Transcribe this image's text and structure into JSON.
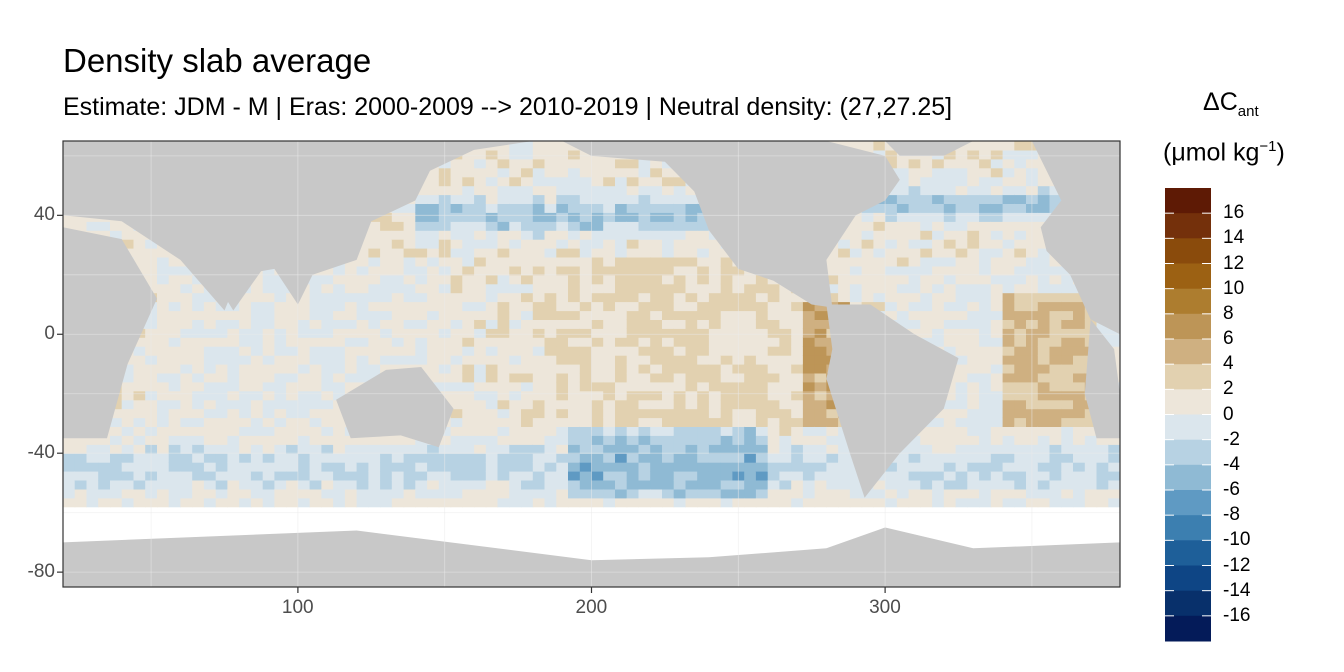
{
  "chart_data": {
    "type": "heatmap",
    "title": "Density slab average",
    "subtitle": "Estimate: JDM - M | Eras: 2000-2009 --> 2010-2019 | Neutral density: (27,27.25]",
    "xlabel": "",
    "ylabel": "",
    "xlim": [
      20,
      380
    ],
    "ylim": [
      -85,
      65
    ],
    "x_ticks": [
      "100",
      "200",
      "300"
    ],
    "x_tick_values": [
      100,
      200,
      300
    ],
    "y_ticks": [
      "40",
      "0",
      "-40",
      "-80"
    ],
    "y_tick_values": [
      40,
      0,
      -40,
      -80
    ],
    "grid": true,
    "legend": {
      "title_main": "ΔC",
      "title_sub": "ant",
      "unit_prefix": "(μmol kg",
      "unit_sup": "−1",
      "unit_suffix": ")",
      "placement": "right",
      "labels": [
        "16",
        "14",
        "12",
        "10",
        "8",
        "6",
        "4",
        "2",
        "0",
        "-2",
        "-4",
        "-6",
        "-8",
        "-10",
        "-12",
        "-14",
        "-16"
      ],
      "colors": [
        "#5e1a05",
        "#74300b",
        "#8a4b0c",
        "#9c6113",
        "#ad7d2f",
        "#bd9557",
        "#cfb081",
        "#e2d1b0",
        "#ede6da",
        "#dbe6ed",
        "#b7d2e3",
        "#8fbad4",
        "#5f9ac3",
        "#3c7fb0",
        "#1e5f99",
        "#0e4585",
        "#08306b",
        "#041b59"
      ]
    },
    "values_note": "",
    "land_color": "#c8c8c8",
    "no_data_color": "#ffffff"
  }
}
